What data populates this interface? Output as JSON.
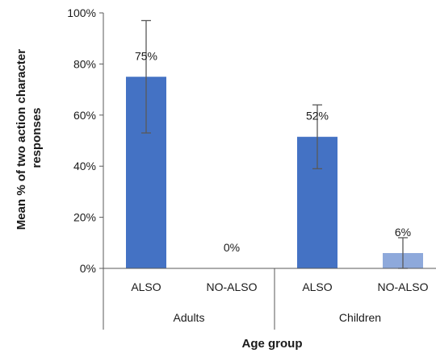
{
  "chart_data": {
    "type": "bar",
    "ylabel_lines": [
      "Mean % of two action character",
      "responses"
    ],
    "xlabel": "Age group",
    "ylim": [
      0,
      100
    ],
    "yticks": [
      0,
      20,
      40,
      60,
      80,
      100
    ],
    "ytick_labels": [
      "0%",
      "20%",
      "40%",
      "60%",
      "80%",
      "100%"
    ],
    "grid": false,
    "legend": "none",
    "groups": [
      {
        "name": "Adults",
        "bars": [
          {
            "category": "ALSO",
            "value": 75,
            "label": "75%",
            "err_low": 53,
            "err_high": 97,
            "color": "#4472C4"
          },
          {
            "category": "NO-ALSO",
            "value": 0,
            "label": "0%",
            "err_low": 0,
            "err_high": 0,
            "color": "#4472C4"
          }
        ]
      },
      {
        "name": "Children",
        "bars": [
          {
            "category": "ALSO",
            "value": 51.5,
            "label": "52%",
            "err_low": 39,
            "err_high": 64,
            "color": "#4472C4"
          },
          {
            "category": "NO-ALSO",
            "value": 6,
            "label": "6%",
            "err_low": 0,
            "err_high": 12,
            "color": "#8EA9DB"
          }
        ]
      }
    ]
  }
}
